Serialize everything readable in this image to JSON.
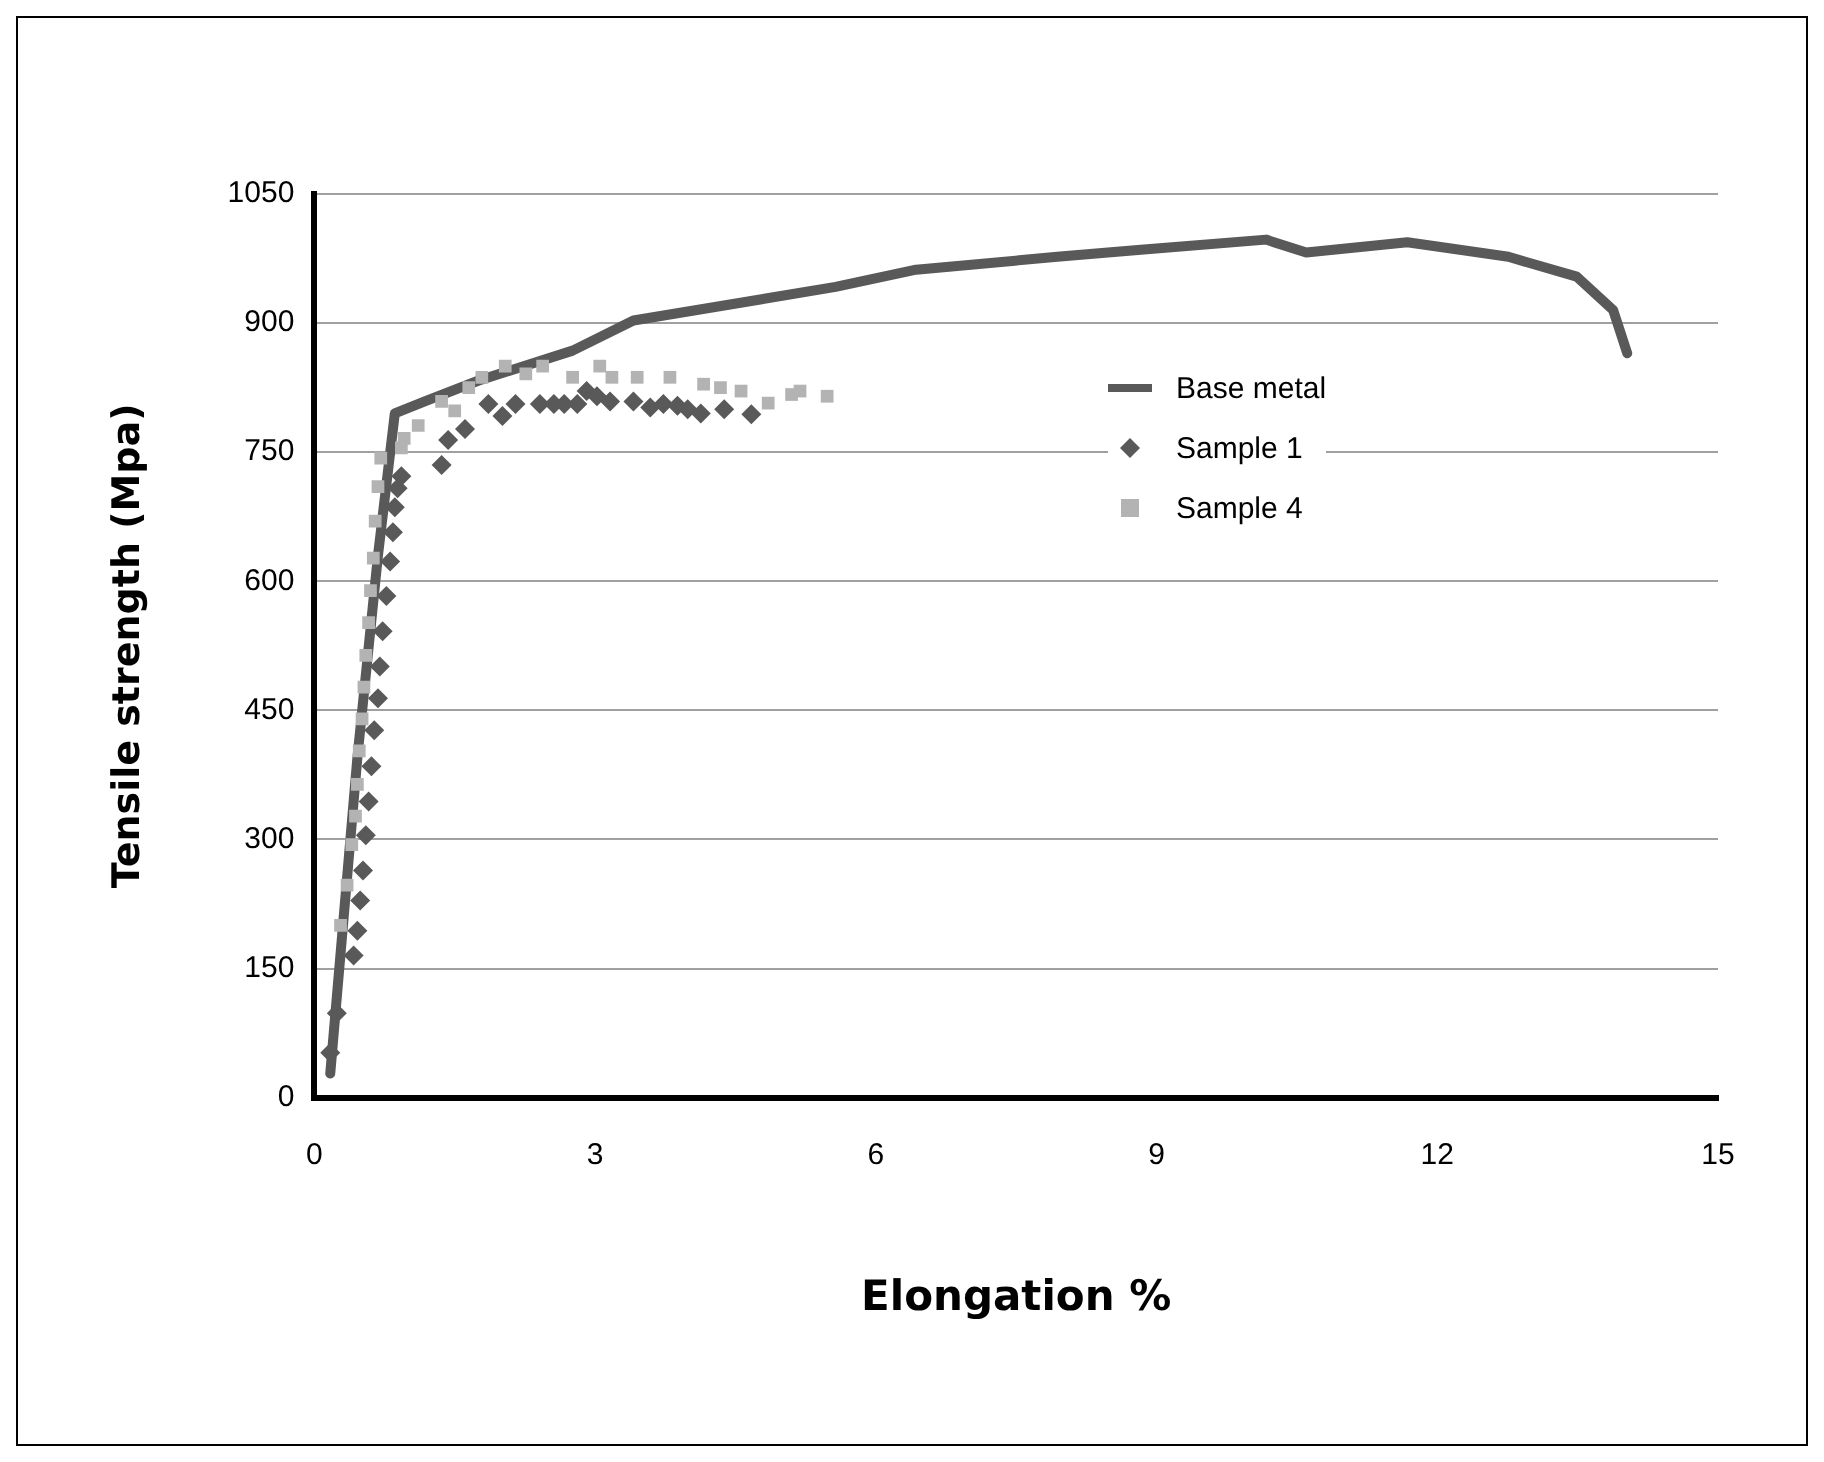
{
  "chart_data": {
    "type": "scatter",
    "xlabel": "Elongation %",
    "ylabel": "Tensile strength (Mpa)",
    "xlim": [
      0,
      15
    ],
    "xticks": [
      0,
      3,
      6,
      9,
      12,
      15
    ],
    "ylim": [
      0,
      1050
    ],
    "yticks": [
      0,
      150,
      300,
      450,
      600,
      750,
      900,
      1050
    ],
    "grid": "y",
    "legend": "right",
    "series": [
      {
        "name": "Base metal",
        "type": "line",
        "color": "#595959",
        "marker": "none",
        "line_style": "solid",
        "x": [
          0.17,
          0.46,
          0.68,
          0.86,
          1.18,
          1.75,
          2.76,
          3.41,
          5.57,
          6.43,
          7.94,
          8.8,
          10.17,
          10.6,
          11.68,
          12.76,
          13.49,
          13.88,
          14.03
        ],
        "values": [
          28,
          395,
          630,
          795,
          809,
          833,
          868,
          903,
          942,
          962,
          977,
          985,
          997,
          982,
          994,
          977,
          954,
          915,
          865
        ]
      },
      {
        "name": "Sample 1",
        "color": "#595959",
        "marker": "diamond",
        "x": [
          0.17,
          0.24,
          0.42,
          0.46,
          0.49,
          0.52,
          0.55,
          0.58,
          0.61,
          0.64,
          0.68,
          0.7,
          0.73,
          0.77,
          0.81,
          0.84,
          0.86,
          0.89,
          0.93,
          1.36,
          1.43,
          1.61,
          1.86,
          2.01,
          2.15,
          2.41,
          2.56,
          2.67,
          2.81,
          2.91,
          3.02,
          3.16,
          3.41,
          3.59,
          3.73,
          3.88,
          3.99,
          4.13,
          4.38,
          4.67
        ],
        "values": [
          52,
          98,
          165,
          194,
          229,
          264,
          305,
          344,
          385,
          427,
          464,
          501,
          542,
          583,
          623,
          657,
          686,
          708,
          722,
          735,
          764,
          777,
          806,
          792,
          806,
          806,
          806,
          806,
          806,
          821,
          815,
          809,
          809,
          802,
          806,
          804,
          800,
          795,
          800,
          794
        ]
      },
      {
        "name": "Sample 4",
        "color": "#b3b3b3",
        "marker": "square",
        "x": [
          0.28,
          0.35,
          0.4,
          0.44,
          0.46,
          0.48,
          0.51,
          0.53,
          0.55,
          0.58,
          0.6,
          0.63,
          0.65,
          0.68,
          0.71,
          0.93,
          0.96,
          1.11,
          1.36,
          1.5,
          1.65,
          1.79,
          2.04,
          2.26,
          2.44,
          2.76,
          3.05,
          3.18,
          3.45,
          3.8,
          4.16,
          4.34,
          4.56,
          4.85,
          5.1,
          5.19,
          5.48
        ],
        "values": [
          200,
          247,
          294,
          327,
          364,
          403,
          440,
          477,
          514,
          552,
          589,
          627,
          670,
          710,
          743,
          755,
          766,
          781,
          809,
          798,
          825,
          837,
          850,
          841,
          850,
          837,
          850,
          837,
          837,
          837,
          829,
          825,
          821,
          807,
          817,
          821,
          815
        ]
      }
    ]
  }
}
